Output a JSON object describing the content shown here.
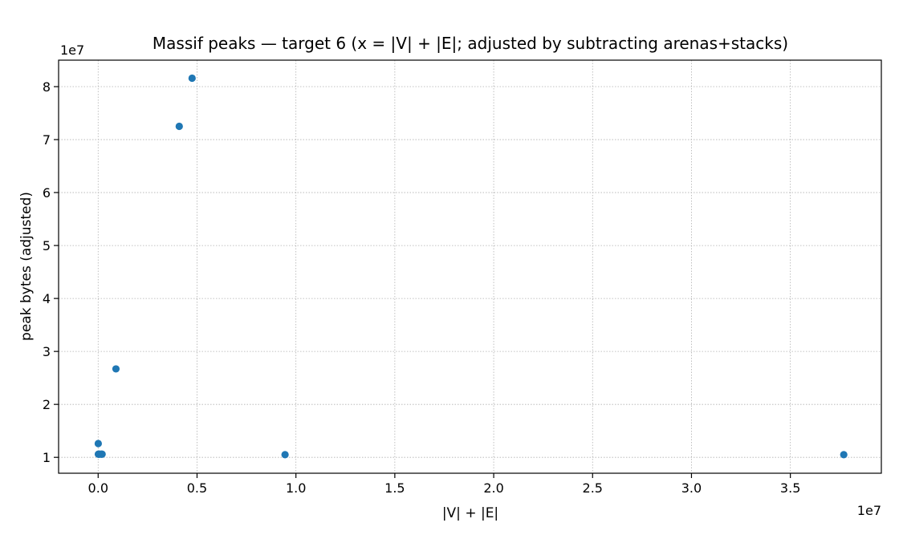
{
  "chart_data": {
    "type": "scatter",
    "title": "Massif peaks — target 6  (x = |V| + |E|; adjusted by subtracting arenas+stacks)",
    "xlabel": "|V| + |E|",
    "ylabel": "peak bytes (adjusted)",
    "x_offset_label": "1e7",
    "y_offset_label": "1e7",
    "xlim": [
      -2000000,
      39600000
    ],
    "ylim": [
      7000000,
      85000000
    ],
    "x_ticks": [
      0,
      5000000,
      10000000,
      15000000,
      20000000,
      25000000,
      30000000,
      35000000
    ],
    "x_tick_labels": [
      "0.0",
      "0.5",
      "1.0",
      "1.5",
      "2.0",
      "2.5",
      "3.0",
      "3.5"
    ],
    "y_ticks": [
      10000000,
      20000000,
      30000000,
      40000000,
      50000000,
      60000000,
      70000000,
      80000000
    ],
    "y_tick_labels": [
      "1",
      "2",
      "3",
      "4",
      "5",
      "6",
      "7",
      "8"
    ],
    "grid": true,
    "marker_color": "#1f77b4",
    "points": [
      {
        "x": 5000,
        "y": 12600000
      },
      {
        "x": 10000,
        "y": 10600000
      },
      {
        "x": 30000,
        "y": 10600000
      },
      {
        "x": 60000,
        "y": 10600000
      },
      {
        "x": 150000,
        "y": 10600000
      },
      {
        "x": 200000,
        "y": 10600000
      },
      {
        "x": 900000,
        "y": 26700000
      },
      {
        "x": 4100000,
        "y": 72500000
      },
      {
        "x": 4750000,
        "y": 81600000
      },
      {
        "x": 9450000,
        "y": 10500000
      },
      {
        "x": 37700000,
        "y": 10500000
      }
    ]
  }
}
